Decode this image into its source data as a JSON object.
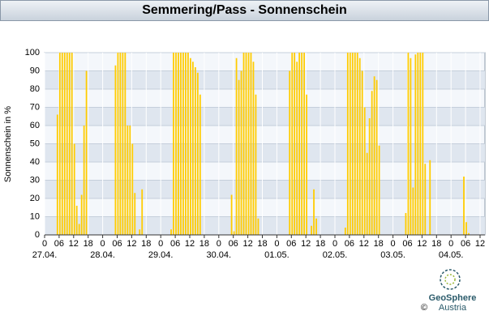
{
  "chart_data": {
    "type": "bar",
    "title": "Semmering/Pass - Sonnenschein",
    "y_label": "Sonnenschein in %",
    "color": "#ffcc00",
    "x": [
      5,
      6,
      7,
      8,
      9,
      10,
      11,
      12,
      13,
      14,
      15,
      16,
      17,
      29,
      30,
      31,
      32,
      33,
      34,
      35,
      36,
      37,
      39,
      40,
      52,
      53,
      54,
      55,
      56,
      57,
      58,
      59,
      60,
      61,
      62,
      63,
      64,
      77,
      78,
      79,
      80,
      81,
      82,
      83,
      84,
      85,
      86,
      87,
      88,
      101,
      102,
      103,
      104,
      105,
      106,
      107,
      108,
      110,
      111,
      112,
      124,
      125,
      126,
      127,
      128,
      129,
      130,
      131,
      132,
      133,
      134,
      135,
      136,
      137,
      138,
      149,
      150,
      151,
      152,
      153,
      154,
      155,
      156,
      157,
      159,
      173,
      174,
      175
    ],
    "values": [
      66,
      100,
      100,
      100,
      100,
      100,
      100,
      50,
      16,
      6,
      22,
      60,
      90,
      93,
      100,
      100,
      100,
      100,
      60,
      60,
      50,
      23,
      3,
      25,
      3,
      100,
      100,
      100,
      100,
      100,
      100,
      100,
      97,
      95,
      92,
      89,
      77,
      22,
      2,
      97,
      85,
      90,
      100,
      100,
      100,
      100,
      95,
      77,
      9,
      90,
      100,
      100,
      95,
      100,
      100,
      100,
      77,
      5,
      25,
      9,
      4,
      100,
      100,
      100,
      100,
      100,
      97,
      90,
      70,
      45,
      64,
      79,
      87,
      85,
      49,
      12,
      100,
      97,
      26,
      99,
      100,
      100,
      100,
      39,
      41,
      32,
      7,
      1
    ],
    "xlim": [
      0,
      180
    ],
    "ylim": [
      0,
      100
    ],
    "yticks": [
      0,
      10,
      20,
      30,
      40,
      50,
      60,
      70,
      80,
      90,
      100
    ],
    "xticks": [
      0,
      {
        "value": 6,
        "label": "06"
      },
      12,
      18,
      {
        "value": 24,
        "label": "0"
      },
      {
        "value": 30,
        "label": "06"
      },
      {
        "value": 36,
        "label": "12"
      },
      {
        "value": 42,
        "label": "18"
      },
      {
        "value": 48,
        "label": "0"
      },
      {
        "value": 54,
        "label": "06"
      },
      {
        "value": 60,
        "label": "12"
      },
      {
        "value": 66,
        "label": "18"
      },
      {
        "value": 72,
        "label": "0"
      },
      {
        "value": 78,
        "label": "06"
      },
      {
        "value": 84,
        "label": "12"
      },
      {
        "value": 90,
        "label": "18"
      },
      {
        "value": 96,
        "label": "0"
      },
      {
        "value": 102,
        "label": "06"
      },
      {
        "value": 108,
        "label": "12"
      },
      {
        "value": 114,
        "label": "18"
      },
      {
        "value": 120,
        "label": "0"
      },
      {
        "value": 126,
        "label": "06"
      },
      {
        "value": 132,
        "label": "12"
      },
      {
        "value": 138,
        "label": "18"
      },
      {
        "value": 144,
        "label": "0"
      },
      {
        "value": 150,
        "label": "06"
      },
      {
        "value": 156,
        "label": "12"
      },
      {
        "value": 162,
        "label": "18"
      },
      {
        "value": 168,
        "label": "0"
      },
      {
        "value": 174,
        "label": "06"
      },
      {
        "value": 180,
        "label": "12"
      }
    ],
    "day_labels": [
      {
        "value": 0,
        "label": "27.04."
      },
      {
        "value": 24,
        "label": "28.04."
      },
      {
        "value": 48,
        "label": "29.04."
      },
      {
        "value": 72,
        "label": "30.04."
      },
      {
        "value": 96,
        "label": "01.05."
      },
      {
        "value": 120,
        "label": "02.05."
      },
      {
        "value": 144,
        "label": "03.05."
      },
      {
        "value": 168,
        "label": "04.05."
      }
    ],
    "grid": true,
    "logo": {
      "name": "GeoSphere",
      "sub": "Austria",
      "copyright": "©"
    }
  }
}
